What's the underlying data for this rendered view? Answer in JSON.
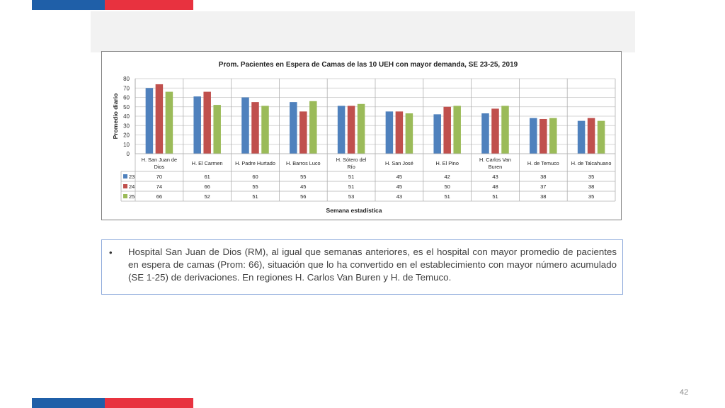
{
  "colors": {
    "brand_blue": "#1f5fa8",
    "brand_red": "#e8323f",
    "series_23": "#4f81bd",
    "series_24": "#c0504d",
    "series_25": "#9bbb59"
  },
  "chart_data": {
    "type": "bar",
    "title": "Prom. Pacientes en Espera de Camas de las 10 UEH con mayor demanda, SE 23-25, 2019",
    "xlabel": "Semana estadística",
    "ylabel": "Promedio diario",
    "ylim": [
      0,
      80
    ],
    "yticks": [
      0,
      10,
      20,
      30,
      40,
      50,
      60,
      70,
      80
    ],
    "grid": true,
    "legend": "data-table",
    "categories": [
      "H. San Juan de Dios",
      "H. El Carmen",
      "H. Padre Hurtado",
      "H. Barros Luco",
      "H. Sótero del Río",
      "H. San José",
      "H. El Pino",
      "H. Carlos Van Buren",
      "H. de Temuco",
      "H. de Talcahuano"
    ],
    "series": [
      {
        "name": "23",
        "color": "#4f81bd",
        "values": [
          70,
          61,
          60,
          55,
          51,
          45,
          42,
          43,
          38,
          35
        ]
      },
      {
        "name": "24",
        "color": "#c0504d",
        "values": [
          74,
          66,
          55,
          45,
          51,
          45,
          50,
          48,
          37,
          38
        ]
      },
      {
        "name": "25",
        "color": "#9bbb59",
        "values": [
          66,
          52,
          51,
          56,
          53,
          43,
          51,
          51,
          38,
          35
        ]
      }
    ]
  },
  "note": {
    "bullet": "•",
    "text": "Hospital San Juan de Dios (RM), al igual que semanas anteriores, es el hospital con mayor promedio de pacientes en espera de camas (Prom: 66), situación que lo ha convertido en el establecimiento con mayor número acumulado (SE 1-25) de derivaciones. En regiones H. Carlos Van Buren y H. de Temuco."
  },
  "page_number": "42"
}
